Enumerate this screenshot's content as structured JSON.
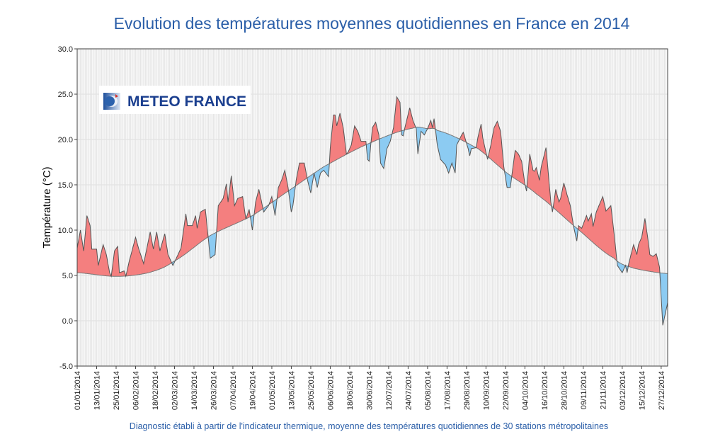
{
  "chart_data": {
    "type": "area",
    "title": "Evolution des températures moyennes quotidiennes en France en 2014",
    "ylabel": "Température (°C)",
    "xlabel": "",
    "footnote": "Diagnostic établi à partir de l'indicateur thermique, moyenne des températures quotidiennes de 30 stations métropolitaines",
    "logo": "METEO FRANCE",
    "year": 2014,
    "ylim": [
      -5,
      30
    ],
    "yticks": [
      "-5.0",
      "0.0",
      "5.0",
      "10.0",
      "15.0",
      "20.0",
      "25.0",
      "30.0"
    ],
    "xticks": [
      "01/01/2014",
      "13/01/2014",
      "25/01/2014",
      "06/02/2014",
      "18/02/2014",
      "02/03/2014",
      "14/03/2014",
      "26/03/2014",
      "07/04/2014",
      "19/04/2014",
      "01/05/2014",
      "13/05/2014",
      "25/05/2014",
      "06/06/2014",
      "18/06/2014",
      "30/06/2014",
      "12/07/2014",
      "24/07/2014",
      "05/08/2014",
      "17/08/2014",
      "29/08/2014",
      "10/09/2014",
      "22/09/2014",
      "04/10/2014",
      "16/10/2014",
      "28/10/2014",
      "09/11/2014",
      "21/11/2014",
      "03/12/2014",
      "15/12/2014",
      "27/12/2014"
    ],
    "grid": true,
    "colors": {
      "above_normal": "#f47f7f",
      "below_normal": "#8ccbf2",
      "line": "#555555",
      "title": "#2a5ea8"
    },
    "series": [
      {
        "key": "observed",
        "points": [
          [
            "01/01",
            8.0
          ],
          [
            "03/01",
            10.0
          ],
          [
            "05/01",
            7.7
          ],
          [
            "07/01",
            11.6
          ],
          [
            "09/01",
            10.5
          ],
          [
            "10/01",
            7.9
          ],
          [
            "13/01",
            7.9
          ],
          [
            "14/01",
            6.1
          ],
          [
            "17/01",
            8.4
          ],
          [
            "19/01",
            7.3
          ],
          [
            "21/01",
            5.3
          ],
          [
            "22/01",
            4.9
          ],
          [
            "24/01",
            7.7
          ],
          [
            "26/01",
            8.2
          ],
          [
            "27/01",
            5.3
          ],
          [
            "30/01",
            5.5
          ],
          [
            "31/01",
            4.9
          ],
          [
            "02/02",
            6.5
          ],
          [
            "06/02",
            9.2
          ],
          [
            "08/02",
            7.9
          ],
          [
            "11/02",
            6.3
          ],
          [
            "15/02",
            9.8
          ],
          [
            "17/02",
            7.9
          ],
          [
            "19/02",
            9.8
          ],
          [
            "21/02",
            7.7
          ],
          [
            "24/02",
            9.6
          ],
          [
            "26/02",
            7.3
          ],
          [
            "01/03",
            6.1
          ],
          [
            "06/03",
            8.0
          ],
          [
            "09/03",
            11.8
          ],
          [
            "10/03",
            10.5
          ],
          [
            "13/03",
            10.5
          ],
          [
            "15/03",
            11.6
          ],
          [
            "16/03",
            10.2
          ],
          [
            "18/03",
            12.0
          ],
          [
            "21/03",
            12.3
          ],
          [
            "23/03",
            8.8
          ],
          [
            "24/03",
            6.9
          ],
          [
            "27/03",
            7.3
          ],
          [
            "29/03",
            12.7
          ],
          [
            "01/04",
            13.5
          ],
          [
            "03/04",
            15.1
          ],
          [
            "04/04",
            13.1
          ],
          [
            "06/04",
            16.0
          ],
          [
            "08/04",
            12.7
          ],
          [
            "10/04",
            13.5
          ],
          [
            "13/04",
            13.7
          ],
          [
            "15/04",
            11.2
          ],
          [
            "17/04",
            12.3
          ],
          [
            "19/04",
            10.0
          ],
          [
            "21/04",
            13.1
          ],
          [
            "23/04",
            14.5
          ],
          [
            "26/04",
            12.0
          ],
          [
            "29/04",
            12.7
          ],
          [
            "01/05",
            13.7
          ],
          [
            "03/05",
            11.6
          ],
          [
            "05/05",
            14.7
          ],
          [
            "07/05",
            15.5
          ],
          [
            "09/05",
            16.6
          ],
          [
            "11/05",
            14.7
          ],
          [
            "13/05",
            12.0
          ],
          [
            "14/05",
            12.7
          ],
          [
            "16/05",
            15.5
          ],
          [
            "18/05",
            17.4
          ],
          [
            "21/05",
            17.4
          ],
          [
            "23/05",
            15.5
          ],
          [
            "25/05",
            14.1
          ],
          [
            "27/05",
            16.3
          ],
          [
            "29/05",
            14.7
          ],
          [
            "31/05",
            16.3
          ],
          [
            "02/06",
            16.6
          ],
          [
            "05/06",
            15.9
          ],
          [
            "06/06",
            19.0
          ],
          [
            "08/06",
            22.7
          ],
          [
            "09/06",
            22.7
          ],
          [
            "10/06",
            21.5
          ],
          [
            "12/06",
            22.9
          ],
          [
            "14/06",
            21.3
          ],
          [
            "16/06",
            18.4
          ],
          [
            "17/06",
            18.6
          ],
          [
            "19/06",
            19.4
          ],
          [
            "21/06",
            21.5
          ],
          [
            "23/06",
            20.9
          ],
          [
            "25/06",
            19.8
          ],
          [
            "28/06",
            19.8
          ],
          [
            "29/06",
            17.8
          ],
          [
            "30/06",
            17.6
          ],
          [
            "02/07",
            21.3
          ],
          [
            "04/07",
            21.9
          ],
          [
            "06/07",
            20.5
          ],
          [
            "07/07",
            17.4
          ],
          [
            "09/07",
            16.8
          ],
          [
            "11/07",
            19.0
          ],
          [
            "13/07",
            19.8
          ],
          [
            "15/07",
            21.3
          ],
          [
            "17/07",
            24.7
          ],
          [
            "19/07",
            24.1
          ],
          [
            "20/07",
            20.5
          ],
          [
            "21/07",
            20.4
          ],
          [
            "22/07",
            21.3
          ],
          [
            "25/07",
            23.5
          ],
          [
            "27/07",
            22.1
          ],
          [
            "29/07",
            21.2
          ],
          [
            "30/07",
            18.4
          ],
          [
            "01/08",
            20.9
          ],
          [
            "03/08",
            20.5
          ],
          [
            "05/08",
            21.2
          ],
          [
            "07/08",
            22.1
          ],
          [
            "08/08",
            21.3
          ],
          [
            "09/08",
            22.3
          ],
          [
            "11/08",
            19.4
          ],
          [
            "13/08",
            17.8
          ],
          [
            "16/08",
            17.2
          ],
          [
            "18/08",
            16.3
          ],
          [
            "20/08",
            17.4
          ],
          [
            "22/08",
            16.3
          ],
          [
            "23/08",
            19.4
          ],
          [
            "26/08",
            20.5
          ],
          [
            "27/08",
            20.8
          ],
          [
            "30/08",
            19.0
          ],
          [
            "31/08",
            18.2
          ],
          [
            "01/09",
            19.0
          ],
          [
            "04/09",
            19.1
          ],
          [
            "05/09",
            20.2
          ],
          [
            "07/09",
            21.7
          ],
          [
            "08/09",
            20.2
          ],
          [
            "11/09",
            17.8
          ],
          [
            "13/09",
            19.4
          ],
          [
            "15/09",
            21.3
          ],
          [
            "17/09",
            22.0
          ],
          [
            "19/09",
            20.9
          ],
          [
            "21/09",
            17.0
          ],
          [
            "23/09",
            14.7
          ],
          [
            "25/09",
            14.7
          ],
          [
            "28/09",
            18.8
          ],
          [
            "30/09",
            18.4
          ],
          [
            "02/10",
            17.6
          ],
          [
            "04/10",
            15.1
          ],
          [
            "05/10",
            14.3
          ],
          [
            "07/10",
            18.4
          ],
          [
            "09/10",
            16.6
          ],
          [
            "10/10",
            16.5
          ],
          [
            "11/10",
            16.9
          ],
          [
            "13/10",
            15.5
          ],
          [
            "14/10",
            16.9
          ],
          [
            "17/10",
            19.1
          ],
          [
            "20/10",
            13.1
          ],
          [
            "21/10",
            12.0
          ],
          [
            "23/10",
            14.5
          ],
          [
            "25/10",
            13.1
          ],
          [
            "26/10",
            13.5
          ],
          [
            "28/10",
            15.2
          ],
          [
            "30/10",
            13.9
          ],
          [
            "01/11",
            12.7
          ],
          [
            "03/11",
            10.4
          ],
          [
            "05/11",
            8.8
          ],
          [
            "06/11",
            10.5
          ],
          [
            "08/11",
            10.2
          ],
          [
            "11/11",
            11.6
          ],
          [
            "12/11",
            11.0
          ],
          [
            "14/11",
            11.8
          ],
          [
            "15/11",
            10.4
          ],
          [
            "17/11",
            12.0
          ],
          [
            "21/11",
            13.7
          ],
          [
            "23/11",
            12.1
          ],
          [
            "26/11",
            12.7
          ],
          [
            "28/11",
            9.6
          ],
          [
            "30/11",
            6.1
          ],
          [
            "03/12",
            5.3
          ],
          [
            "05/12",
            6.1
          ],
          [
            "06/12",
            5.3
          ],
          [
            "07/12",
            6.3
          ],
          [
            "10/12",
            8.4
          ],
          [
            "12/12",
            7.3
          ],
          [
            "13/12",
            8.4
          ],
          [
            "15/12",
            9.2
          ],
          [
            "17/12",
            11.3
          ],
          [
            "19/12",
            8.8
          ],
          [
            "20/12",
            7.3
          ],
          [
            "22/12",
            7.1
          ],
          [
            "24/12",
            7.4
          ],
          [
            "26/12",
            5.9
          ],
          [
            "27/12",
            2.6
          ],
          [
            "28/12",
            -0.5
          ],
          [
            "31/12",
            2.0
          ]
        ]
      },
      {
        "key": "normal",
        "points": [
          [
            "01/01",
            5.3
          ],
          [
            "25/01",
            4.9
          ],
          [
            "14/02",
            5.3
          ],
          [
            "01/03",
            6.5
          ],
          [
            "24/03",
            9.4
          ],
          [
            "19/04",
            11.6
          ],
          [
            "11/05",
            14.3
          ],
          [
            "02/06",
            17.0
          ],
          [
            "29/06",
            19.5
          ],
          [
            "27/07",
            21.25
          ],
          [
            "05/08",
            21.2
          ],
          [
            "11/08",
            21.0
          ],
          [
            "05/09",
            19.0
          ],
          [
            "23/09",
            16.3
          ],
          [
            "11/10",
            14.0
          ],
          [
            "03/11",
            10.5
          ],
          [
            "28/11",
            6.9
          ],
          [
            "10/12",
            5.8
          ],
          [
            "31/12",
            5.2
          ]
        ]
      }
    ]
  }
}
